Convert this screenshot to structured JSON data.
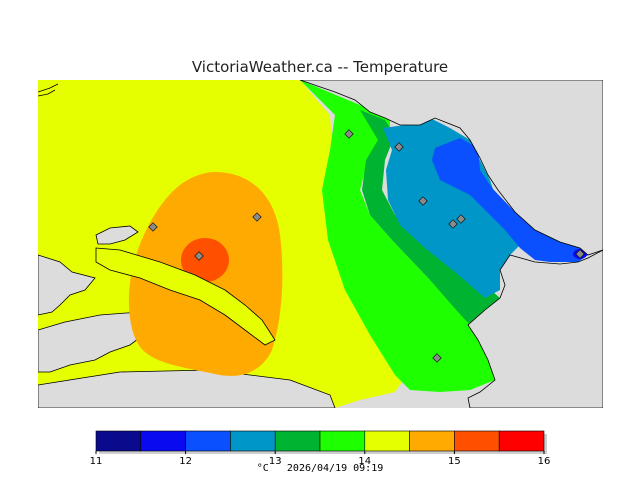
{
  "title": "VictoriaWeather.ca -- Temperature",
  "legend": {
    "colors": [
      "#0a0a8c",
      "#0a0af0",
      "#0a50ff",
      "#0096c8",
      "#00b432",
      "#1eff00",
      "#e6ff00",
      "#ffaa00",
      "#ff5000",
      "#ff0000"
    ],
    "ticks": [
      "11",
      "12",
      "13",
      "14",
      "15",
      "16"
    ]
  },
  "footer": {
    "unit": "°C",
    "timestamp": "2026/04/19 09:19"
  },
  "colors": {
    "land": "#dcdcdc",
    "coast": "#000000"
  },
  "station_count": 10
}
